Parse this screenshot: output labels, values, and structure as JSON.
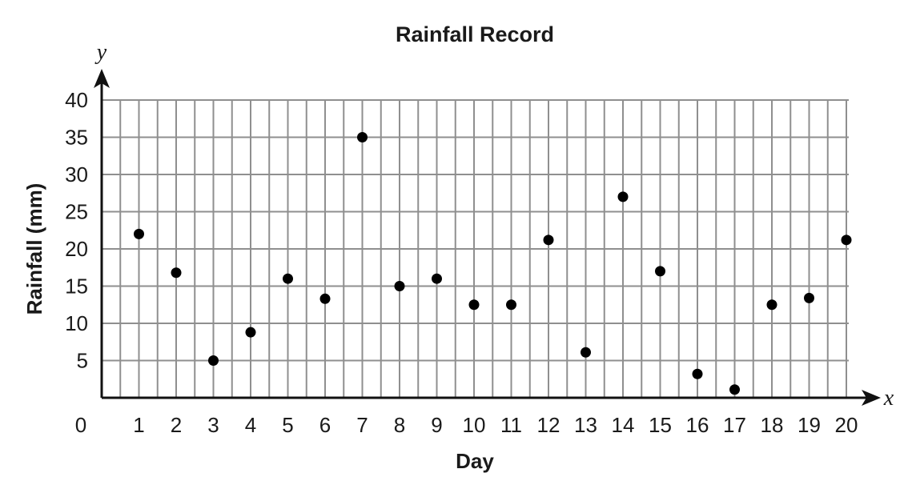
{
  "chart_data": {
    "type": "scatter",
    "title": "Rainfall Record",
    "xlabel": "Day",
    "ylabel": "Rainfall (mm)",
    "x_axis_var": "x",
    "y_axis_var": "y",
    "origin_label": "0",
    "xlim": [
      0,
      20
    ],
    "ylim": [
      0,
      40
    ],
    "x_ticks": [
      "1",
      "2",
      "3",
      "4",
      "5",
      "6",
      "7",
      "8",
      "9",
      "10",
      "11",
      "12",
      "13",
      "14",
      "15",
      "16",
      "17",
      "18",
      "19",
      "20"
    ],
    "y_ticks": [
      "5",
      "10",
      "15",
      "20",
      "25",
      "30",
      "35",
      "40"
    ],
    "grid": true,
    "colors": {
      "points": "#000000",
      "grid": "#8f8f8f",
      "axis": "#111111"
    },
    "points": [
      {
        "x": 1,
        "y": 22
      },
      {
        "x": 2,
        "y": 16.8
      },
      {
        "x": 3,
        "y": 5
      },
      {
        "x": 4,
        "y": 8.8
      },
      {
        "x": 5,
        "y": 16
      },
      {
        "x": 6,
        "y": 13.3
      },
      {
        "x": 7,
        "y": 35
      },
      {
        "x": 8,
        "y": 15
      },
      {
        "x": 9,
        "y": 16
      },
      {
        "x": 10,
        "y": 12.5
      },
      {
        "x": 11,
        "y": 12.5
      },
      {
        "x": 12,
        "y": 21.2
      },
      {
        "x": 13,
        "y": 6.1
      },
      {
        "x": 14,
        "y": 27
      },
      {
        "x": 15,
        "y": 17
      },
      {
        "x": 16,
        "y": 3.2
      },
      {
        "x": 17,
        "y": 1.1
      },
      {
        "x": 18,
        "y": 12.5
      },
      {
        "x": 19,
        "y": 13.4
      },
      {
        "x": 20,
        "y": 21.2
      }
    ]
  }
}
